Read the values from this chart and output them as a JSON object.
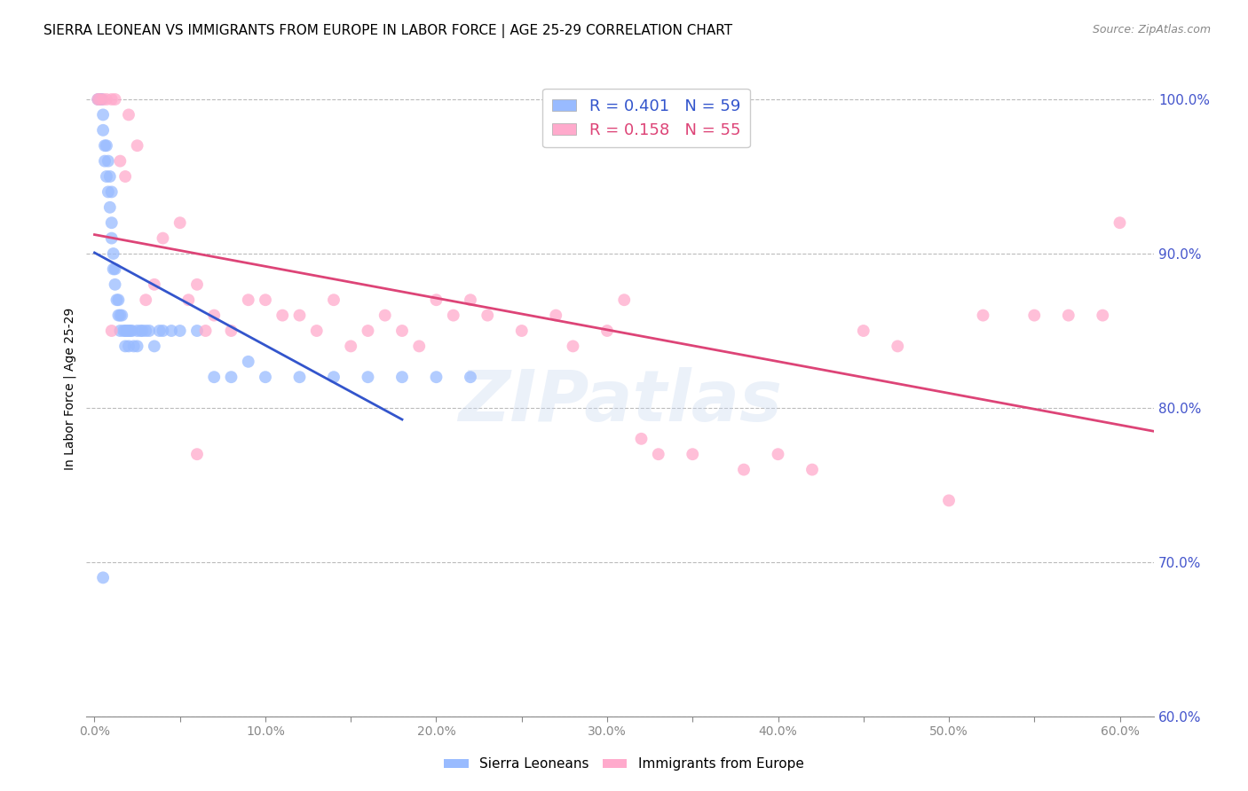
{
  "title": "SIERRA LEONEAN VS IMMIGRANTS FROM EUROPE IN LABOR FORCE | AGE 25-29 CORRELATION CHART",
  "source": "Source: ZipAtlas.com",
  "ylabel": "In Labor Force | Age 25-29",
  "legend_entries": [
    {
      "label": "R = 0.401   N = 59",
      "color": "#3366cc"
    },
    {
      "label": "R = 0.158   N = 55",
      "color": "#cc3366"
    }
  ],
  "legend_labels_bottom": [
    "Sierra Leoneans",
    "Immigrants from Europe"
  ],
  "right_ytick_labels": [
    "100.0%",
    "90.0%",
    "80.0%",
    "70.0%",
    "60.0%"
  ],
  "right_ytick_values": [
    1.0,
    0.9,
    0.8,
    0.7,
    0.6
  ],
  "bottom_xtick_labels": [
    "0.0%",
    "",
    "10.0%",
    "",
    "20.0%",
    "",
    "30.0%",
    "",
    "40.0%",
    "",
    "50.0%",
    "",
    "60.0%"
  ],
  "bottom_xtick_values": [
    0.0,
    0.05,
    0.1,
    0.15,
    0.2,
    0.25,
    0.3,
    0.35,
    0.4,
    0.45,
    0.5,
    0.55,
    0.6
  ],
  "xlim": [
    -0.005,
    0.62
  ],
  "ylim": [
    0.6,
    1.025
  ],
  "blue_x": [
    0.002,
    0.003,
    0.004,
    0.004,
    0.005,
    0.005,
    0.006,
    0.006,
    0.007,
    0.007,
    0.008,
    0.008,
    0.009,
    0.009,
    0.01,
    0.01,
    0.01,
    0.011,
    0.011,
    0.012,
    0.012,
    0.013,
    0.014,
    0.014,
    0.015,
    0.015,
    0.016,
    0.017,
    0.018,
    0.018,
    0.019,
    0.02,
    0.02,
    0.021,
    0.022,
    0.023,
    0.025,
    0.025,
    0.027,
    0.028,
    0.03,
    0.032,
    0.035,
    0.038,
    0.04,
    0.045,
    0.05,
    0.06,
    0.07,
    0.08,
    0.09,
    0.1,
    0.12,
    0.14,
    0.16,
    0.18,
    0.2,
    0.22,
    0.005
  ],
  "blue_y": [
    1.0,
    1.0,
    1.0,
    1.0,
    0.99,
    0.98,
    0.97,
    0.96,
    0.97,
    0.95,
    0.96,
    0.94,
    0.95,
    0.93,
    0.94,
    0.92,
    0.91,
    0.9,
    0.89,
    0.88,
    0.89,
    0.87,
    0.86,
    0.87,
    0.86,
    0.85,
    0.86,
    0.85,
    0.85,
    0.84,
    0.85,
    0.85,
    0.84,
    0.85,
    0.85,
    0.84,
    0.85,
    0.84,
    0.85,
    0.85,
    0.85,
    0.85,
    0.84,
    0.85,
    0.85,
    0.85,
    0.85,
    0.85,
    0.82,
    0.82,
    0.83,
    0.82,
    0.82,
    0.82,
    0.82,
    0.82,
    0.82,
    0.82,
    0.69
  ],
  "pink_x": [
    0.002,
    0.003,
    0.005,
    0.007,
    0.01,
    0.012,
    0.015,
    0.018,
    0.02,
    0.025,
    0.03,
    0.035,
    0.04,
    0.05,
    0.055,
    0.06,
    0.065,
    0.07,
    0.08,
    0.09,
    0.1,
    0.11,
    0.12,
    0.13,
    0.14,
    0.15,
    0.16,
    0.17,
    0.18,
    0.19,
    0.2,
    0.21,
    0.22,
    0.23,
    0.25,
    0.27,
    0.28,
    0.3,
    0.31,
    0.32,
    0.33,
    0.35,
    0.38,
    0.4,
    0.42,
    0.45,
    0.47,
    0.5,
    0.52,
    0.55,
    0.57,
    0.59,
    0.6,
    0.01,
    0.06
  ],
  "pink_y": [
    1.0,
    1.0,
    1.0,
    1.0,
    1.0,
    1.0,
    0.96,
    0.95,
    0.99,
    0.97,
    0.87,
    0.88,
    0.91,
    0.92,
    0.87,
    0.88,
    0.85,
    0.86,
    0.85,
    0.87,
    0.87,
    0.86,
    0.86,
    0.85,
    0.87,
    0.84,
    0.85,
    0.86,
    0.85,
    0.84,
    0.87,
    0.86,
    0.87,
    0.86,
    0.85,
    0.86,
    0.84,
    0.85,
    0.87,
    0.78,
    0.77,
    0.77,
    0.76,
    0.77,
    0.76,
    0.85,
    0.84,
    0.74,
    0.86,
    0.86,
    0.86,
    0.86,
    0.92,
    0.85,
    0.77
  ],
  "blue_line_start_x": 0.0,
  "blue_line_end_x": 0.18,
  "pink_line_start_x": 0.0,
  "pink_line_end_x": 0.62,
  "blue_line_color": "#3355cc",
  "pink_line_color": "#dd4477",
  "blue_scatter_color": "#99bbff",
  "pink_scatter_color": "#ffaacc",
  "scatter_alpha": 0.75,
  "scatter_size": 100,
  "grid_color": "#bbbbbb",
  "background_color": "#ffffff",
  "title_fontsize": 11,
  "source_fontsize": 9,
  "axis_label_color": "#4455cc",
  "watermark_text": "ZIPatlas",
  "watermark_color": "#c8d8f0",
  "watermark_alpha": 0.35
}
